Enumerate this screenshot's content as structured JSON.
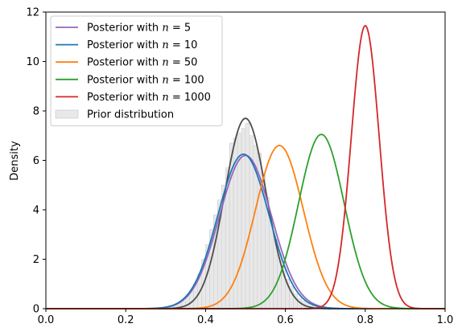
{
  "chart_data": {
    "type": "line",
    "xlabel": "",
    "ylabel": "Density",
    "xlim": [
      0.0,
      1.0
    ],
    "ylim": [
      0,
      12
    ],
    "xticks": [
      "0.0",
      "0.2",
      "0.4",
      "0.6",
      "0.8",
      "1.0"
    ],
    "yticks": [
      "0",
      "2",
      "4",
      "6",
      "8",
      "10",
      "12"
    ],
    "legend_position": "top-left",
    "series": [
      {
        "name_prefix": "Posterior with ",
        "name_var": "n",
        "name_value": "5",
        "color": "#9467bd",
        "mean": 0.5,
        "sd": 0.065,
        "peak": 6.2
      },
      {
        "name_prefix": "Posterior with ",
        "name_var": "n",
        "name_value": "10",
        "color": "#1f77b4",
        "mean": 0.495,
        "sd": 0.064,
        "peak": 6.25
      },
      {
        "name_prefix": "Posterior with ",
        "name_var": "n",
        "name_value": "50",
        "color": "#ff7f0e",
        "mean": 0.585,
        "sd": 0.06,
        "peak": 6.6
      },
      {
        "name_prefix": "Posterior with ",
        "name_var": "n",
        "name_value": "100",
        "color": "#2ca02c",
        "mean": 0.69,
        "sd": 0.057,
        "peak": 7.05
      },
      {
        "name_prefix": "Posterior with ",
        "name_var": "n",
        "name_value": "1000",
        "color": "#d62728",
        "mean": 0.8,
        "sd": 0.035,
        "peak": 11.45
      }
    ],
    "prior": {
      "name": "Prior distribution",
      "fill_color": "#e8e8e8",
      "edge_color": "#d0d0d0",
      "kde_color": "#4d4d4d",
      "mean": 0.5,
      "sd": 0.052,
      "kde_peak": 7.7,
      "bins": [
        {
          "x0": 0.3,
          "x1": 0.31,
          "h": 0.05
        },
        {
          "x0": 0.31,
          "x1": 0.32,
          "h": 0.1
        },
        {
          "x0": 0.32,
          "x1": 0.33,
          "h": 0.15
        },
        {
          "x0": 0.33,
          "x1": 0.34,
          "h": 0.2
        },
        {
          "x0": 0.34,
          "x1": 0.35,
          "h": 0.3
        },
        {
          "x0": 0.35,
          "x1": 0.36,
          "h": 0.5
        },
        {
          "x0": 0.36,
          "x1": 0.37,
          "h": 0.7
        },
        {
          "x0": 0.37,
          "x1": 0.38,
          "h": 1.0
        },
        {
          "x0": 0.38,
          "x1": 0.39,
          "h": 1.4
        },
        {
          "x0": 0.39,
          "x1": 0.4,
          "h": 2.0
        },
        {
          "x0": 0.4,
          "x1": 0.41,
          "h": 2.6
        },
        {
          "x0": 0.41,
          "x1": 0.42,
          "h": 3.2
        },
        {
          "x0": 0.42,
          "x1": 0.43,
          "h": 3.8
        },
        {
          "x0": 0.43,
          "x1": 0.44,
          "h": 4.4
        },
        {
          "x0": 0.44,
          "x1": 0.45,
          "h": 5.0
        },
        {
          "x0": 0.45,
          "x1": 0.46,
          "h": 5.7
        },
        {
          "x0": 0.46,
          "x1": 0.47,
          "h": 6.7
        },
        {
          "x0": 0.47,
          "x1": 0.48,
          "h": 6.9
        },
        {
          "x0": 0.48,
          "x1": 0.49,
          "h": 7.1
        },
        {
          "x0": 0.49,
          "x1": 0.5,
          "h": 7.3
        },
        {
          "x0": 0.5,
          "x1": 0.51,
          "h": 7.5
        },
        {
          "x0": 0.51,
          "x1": 0.52,
          "h": 7.0
        },
        {
          "x0": 0.52,
          "x1": 0.53,
          "h": 6.6
        },
        {
          "x0": 0.53,
          "x1": 0.54,
          "h": 6.3
        },
        {
          "x0": 0.54,
          "x1": 0.55,
          "h": 5.4
        },
        {
          "x0": 0.55,
          "x1": 0.56,
          "h": 4.5
        },
        {
          "x0": 0.56,
          "x1": 0.57,
          "h": 3.5
        },
        {
          "x0": 0.57,
          "x1": 0.58,
          "h": 2.8
        },
        {
          "x0": 0.58,
          "x1": 0.59,
          "h": 2.2
        },
        {
          "x0": 0.59,
          "x1": 0.6,
          "h": 1.7
        },
        {
          "x0": 0.6,
          "x1": 0.61,
          "h": 1.2
        },
        {
          "x0": 0.61,
          "x1": 0.62,
          "h": 0.9
        },
        {
          "x0": 0.62,
          "x1": 0.63,
          "h": 0.6
        },
        {
          "x0": 0.63,
          "x1": 0.64,
          "h": 0.4
        },
        {
          "x0": 0.64,
          "x1": 0.65,
          "h": 0.3
        },
        {
          "x0": 0.65,
          "x1": 0.66,
          "h": 0.2
        },
        {
          "x0": 0.66,
          "x1": 0.67,
          "h": 0.1
        },
        {
          "x0": 0.67,
          "x1": 0.68,
          "h": 0.05
        }
      ]
    }
  }
}
